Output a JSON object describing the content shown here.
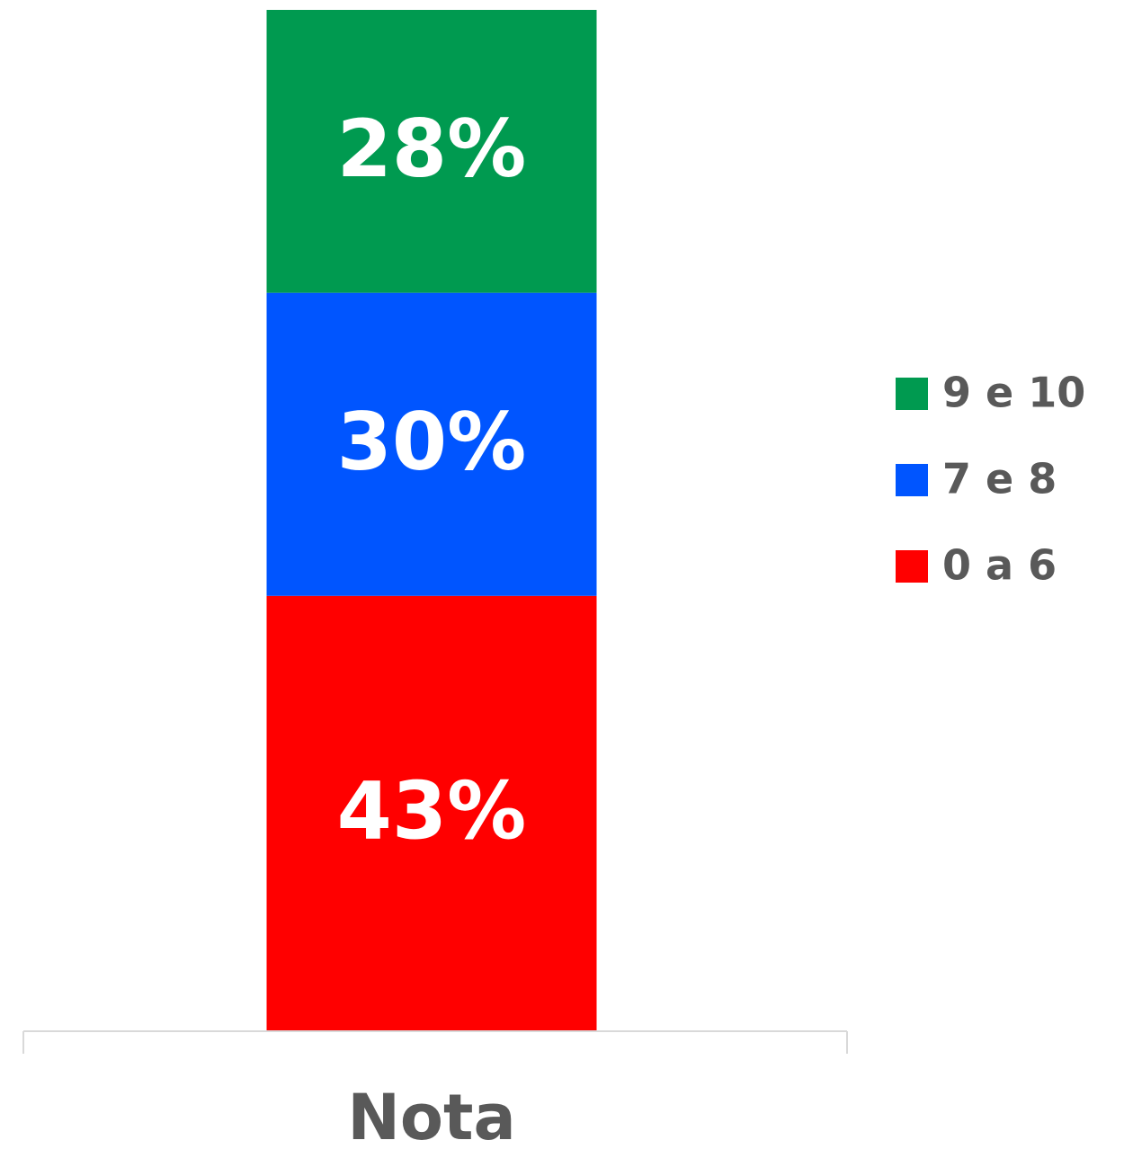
{
  "chart_data": {
    "type": "stacked_bar",
    "categories": [
      "Nota"
    ],
    "series": [
      {
        "name": "0 a 6",
        "color": "#ff0000",
        "values": [
          43
        ],
        "value_labels": [
          "43%"
        ]
      },
      {
        "name": "7 e 8",
        "color": "#0055ff",
        "values": [
          30
        ],
        "value_labels": [
          "30%"
        ]
      },
      {
        "name": "9 e 10",
        "color": "#009a50",
        "values": [
          28
        ],
        "value_labels": [
          "28%"
        ]
      }
    ],
    "legend": "right"
  }
}
